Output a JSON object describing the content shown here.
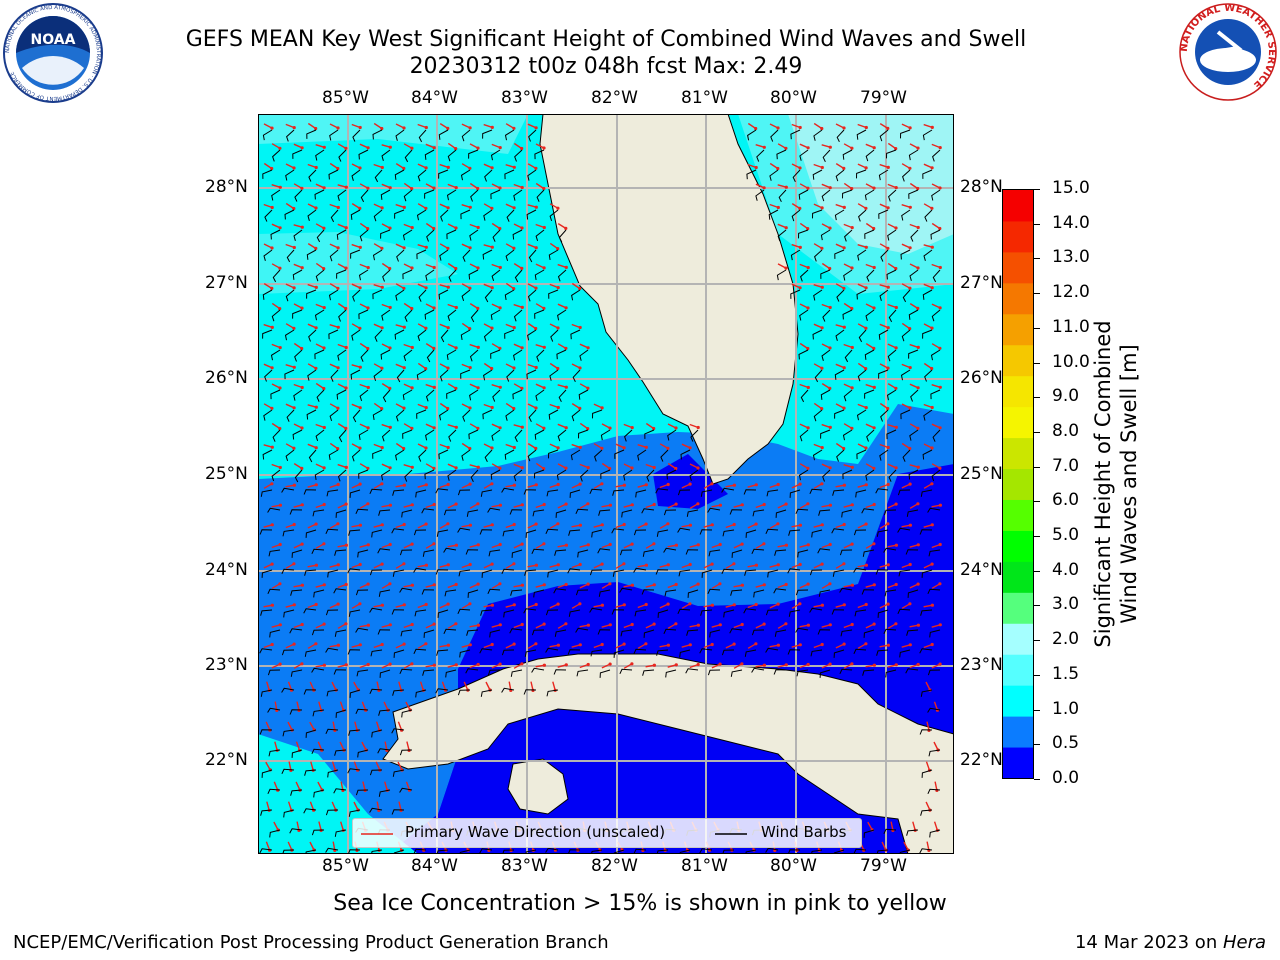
{
  "header": {
    "title_line1": "GEFS MEAN Key West Significant Height of Combined Wind Waves and Swell",
    "title_line2": "20230312 t00z 048h fcst   Max: 2.49"
  },
  "logos": {
    "noaa_text": "NOAA",
    "noaa_ring": "NATIONAL OCEANIC AND ATMOSPHERIC ADMINISTRATION · U.S. DEPARTMENT OF COMMERCE",
    "nws_ring": "NATIONAL WEATHER SERVICE"
  },
  "map": {
    "lon_labels": [
      "85°W",
      "84°W",
      "83°W",
      "82°W",
      "81°W",
      "80°W",
      "79°W"
    ],
    "lat_labels": [
      "28°N",
      "27°N",
      "26°N",
      "25°N",
      "24°N",
      "23°N",
      "22°N"
    ],
    "legend": {
      "wave_label": "Primary Wave Direction (unscaled)",
      "barb_label": "Wind Barbs",
      "wave_color": "#e8261e",
      "barb_color": "#000000"
    },
    "colors": {
      "land": "#eeecdc",
      "band_0_0.5": "#0000f5",
      "band_0.5_1.0": "#0b7cf5",
      "band_1.0_1.5": "#00f5f5",
      "band_1.5_2.0": "#4ff5f5",
      "band_2.0_2.5": "#9ff5f5"
    }
  },
  "colorbar": {
    "label_line1": "Significant Height of Combined",
    "label_line2": "Wind Waves and Swell [m]",
    "ticks": [
      "15.0",
      "14.0",
      "13.0",
      "12.0",
      "11.0",
      "10.0",
      "9.0",
      "8.0",
      "7.0",
      "6.0",
      "5.0",
      "4.0",
      "3.0",
      "2.0",
      "1.5",
      "1.0",
      "0.5",
      "0.0"
    ],
    "colors_bottom_to_top": [
      "#0000ff",
      "#0b7cff",
      "#00ffff",
      "#55ffff",
      "#a5ffff",
      "#55ff7d",
      "#00e619",
      "#00ff00",
      "#55ff00",
      "#a5e600",
      "#cbe600",
      "#f5f500",
      "#f5e600",
      "#f5c800",
      "#f5a000",
      "#f57800",
      "#f55000",
      "#f52800",
      "#f50000"
    ]
  },
  "footer": {
    "note": "Sea Ice Concentration > 15% is shown in pink to yellow",
    "left": "NCEP/EMC/Verification Post Processing Product Generation Branch",
    "right_date": "14 Mar 2023 on ",
    "right_host": "Hera"
  }
}
